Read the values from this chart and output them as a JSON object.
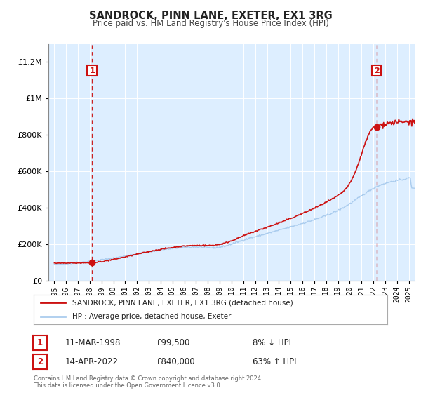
{
  "title": "SANDROCK, PINN LANE, EXETER, EX1 3RG",
  "subtitle": "Price paid vs. HM Land Registry's House Price Index (HPI)",
  "background_color": "#ffffff",
  "plot_bg_color": "#ddeeff",
  "grid_color": "#ffffff",
  "sale1_date": 1998.19,
  "sale1_price": 99500,
  "sale1_label": "1",
  "sale2_date": 2022.28,
  "sale2_price": 840000,
  "sale2_label": "2",
  "hpi_line_color": "#aaccee",
  "price_line_color": "#cc1111",
  "marker_color": "#cc1111",
  "dashed_line_color": "#cc2222",
  "ylim_max": 1300000,
  "ylim_min": 0,
  "xlim_min": 1994.5,
  "xlim_max": 2025.5,
  "legend_label_price": "SANDROCK, PINN LANE, EXETER, EX1 3RG (detached house)",
  "legend_label_hpi": "HPI: Average price, detached house, Exeter",
  "annotation1_date": "11-MAR-1998",
  "annotation1_price": "£99,500",
  "annotation1_hpi": "8% ↓ HPI",
  "annotation2_date": "14-APR-2022",
  "annotation2_price": "£840,000",
  "annotation2_hpi": "63% ↑ HPI",
  "footer": "Contains HM Land Registry data © Crown copyright and database right 2024.\nThis data is licensed under the Open Government Licence v3.0."
}
